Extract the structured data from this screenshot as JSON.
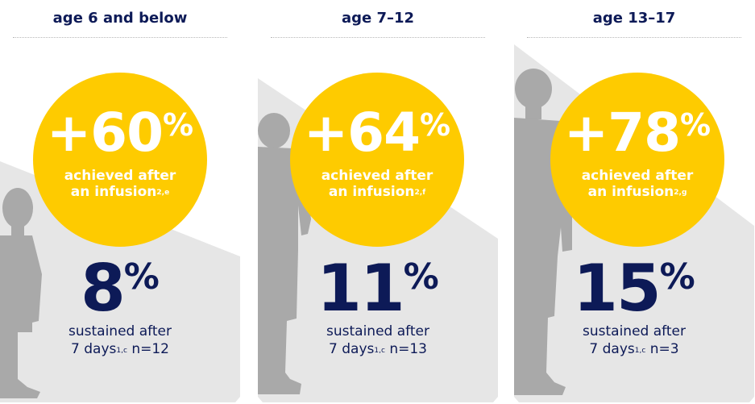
{
  "groups": [
    {
      "heading": "age 6 and below",
      "achieved_value": "+60",
      "achieved_unit": "%",
      "achieved_line1": "achieved after",
      "achieved_line2": "an infusion",
      "achieved_ref": "2,e",
      "sustained_value": "8",
      "sustained_unit": "%",
      "sustained_line1": "sustained after",
      "sustained_days": "7 days",
      "sustained_ref": "1,c",
      "sustained_n": " n=12"
    },
    {
      "heading": "age 7–12",
      "achieved_value": "+64",
      "achieved_unit": "%",
      "achieved_line1": "achieved after",
      "achieved_line2": "an infusion",
      "achieved_ref": "2,f",
      "sustained_value": "11",
      "sustained_unit": "%",
      "sustained_line1": "sustained after",
      "sustained_days": "7 days",
      "sustained_ref": "1,c",
      "sustained_n": " n=13"
    },
    {
      "heading": "age 13–17",
      "achieved_value": "+78",
      "achieved_unit": "%",
      "achieved_line1": "achieved after",
      "achieved_line2": "an infusion",
      "achieved_ref": "2,g",
      "sustained_value": "15",
      "sustained_unit": "%",
      "sustained_line1": "sustained after",
      "sustained_days": "7 days",
      "sustained_ref": "1,c",
      "sustained_n": " n=3"
    }
  ],
  "colors": {
    "circle": "#fecb00",
    "navy": "#0d1a57",
    "panel": "#e6e6e6",
    "silhouette": "#a9a9a9"
  }
}
